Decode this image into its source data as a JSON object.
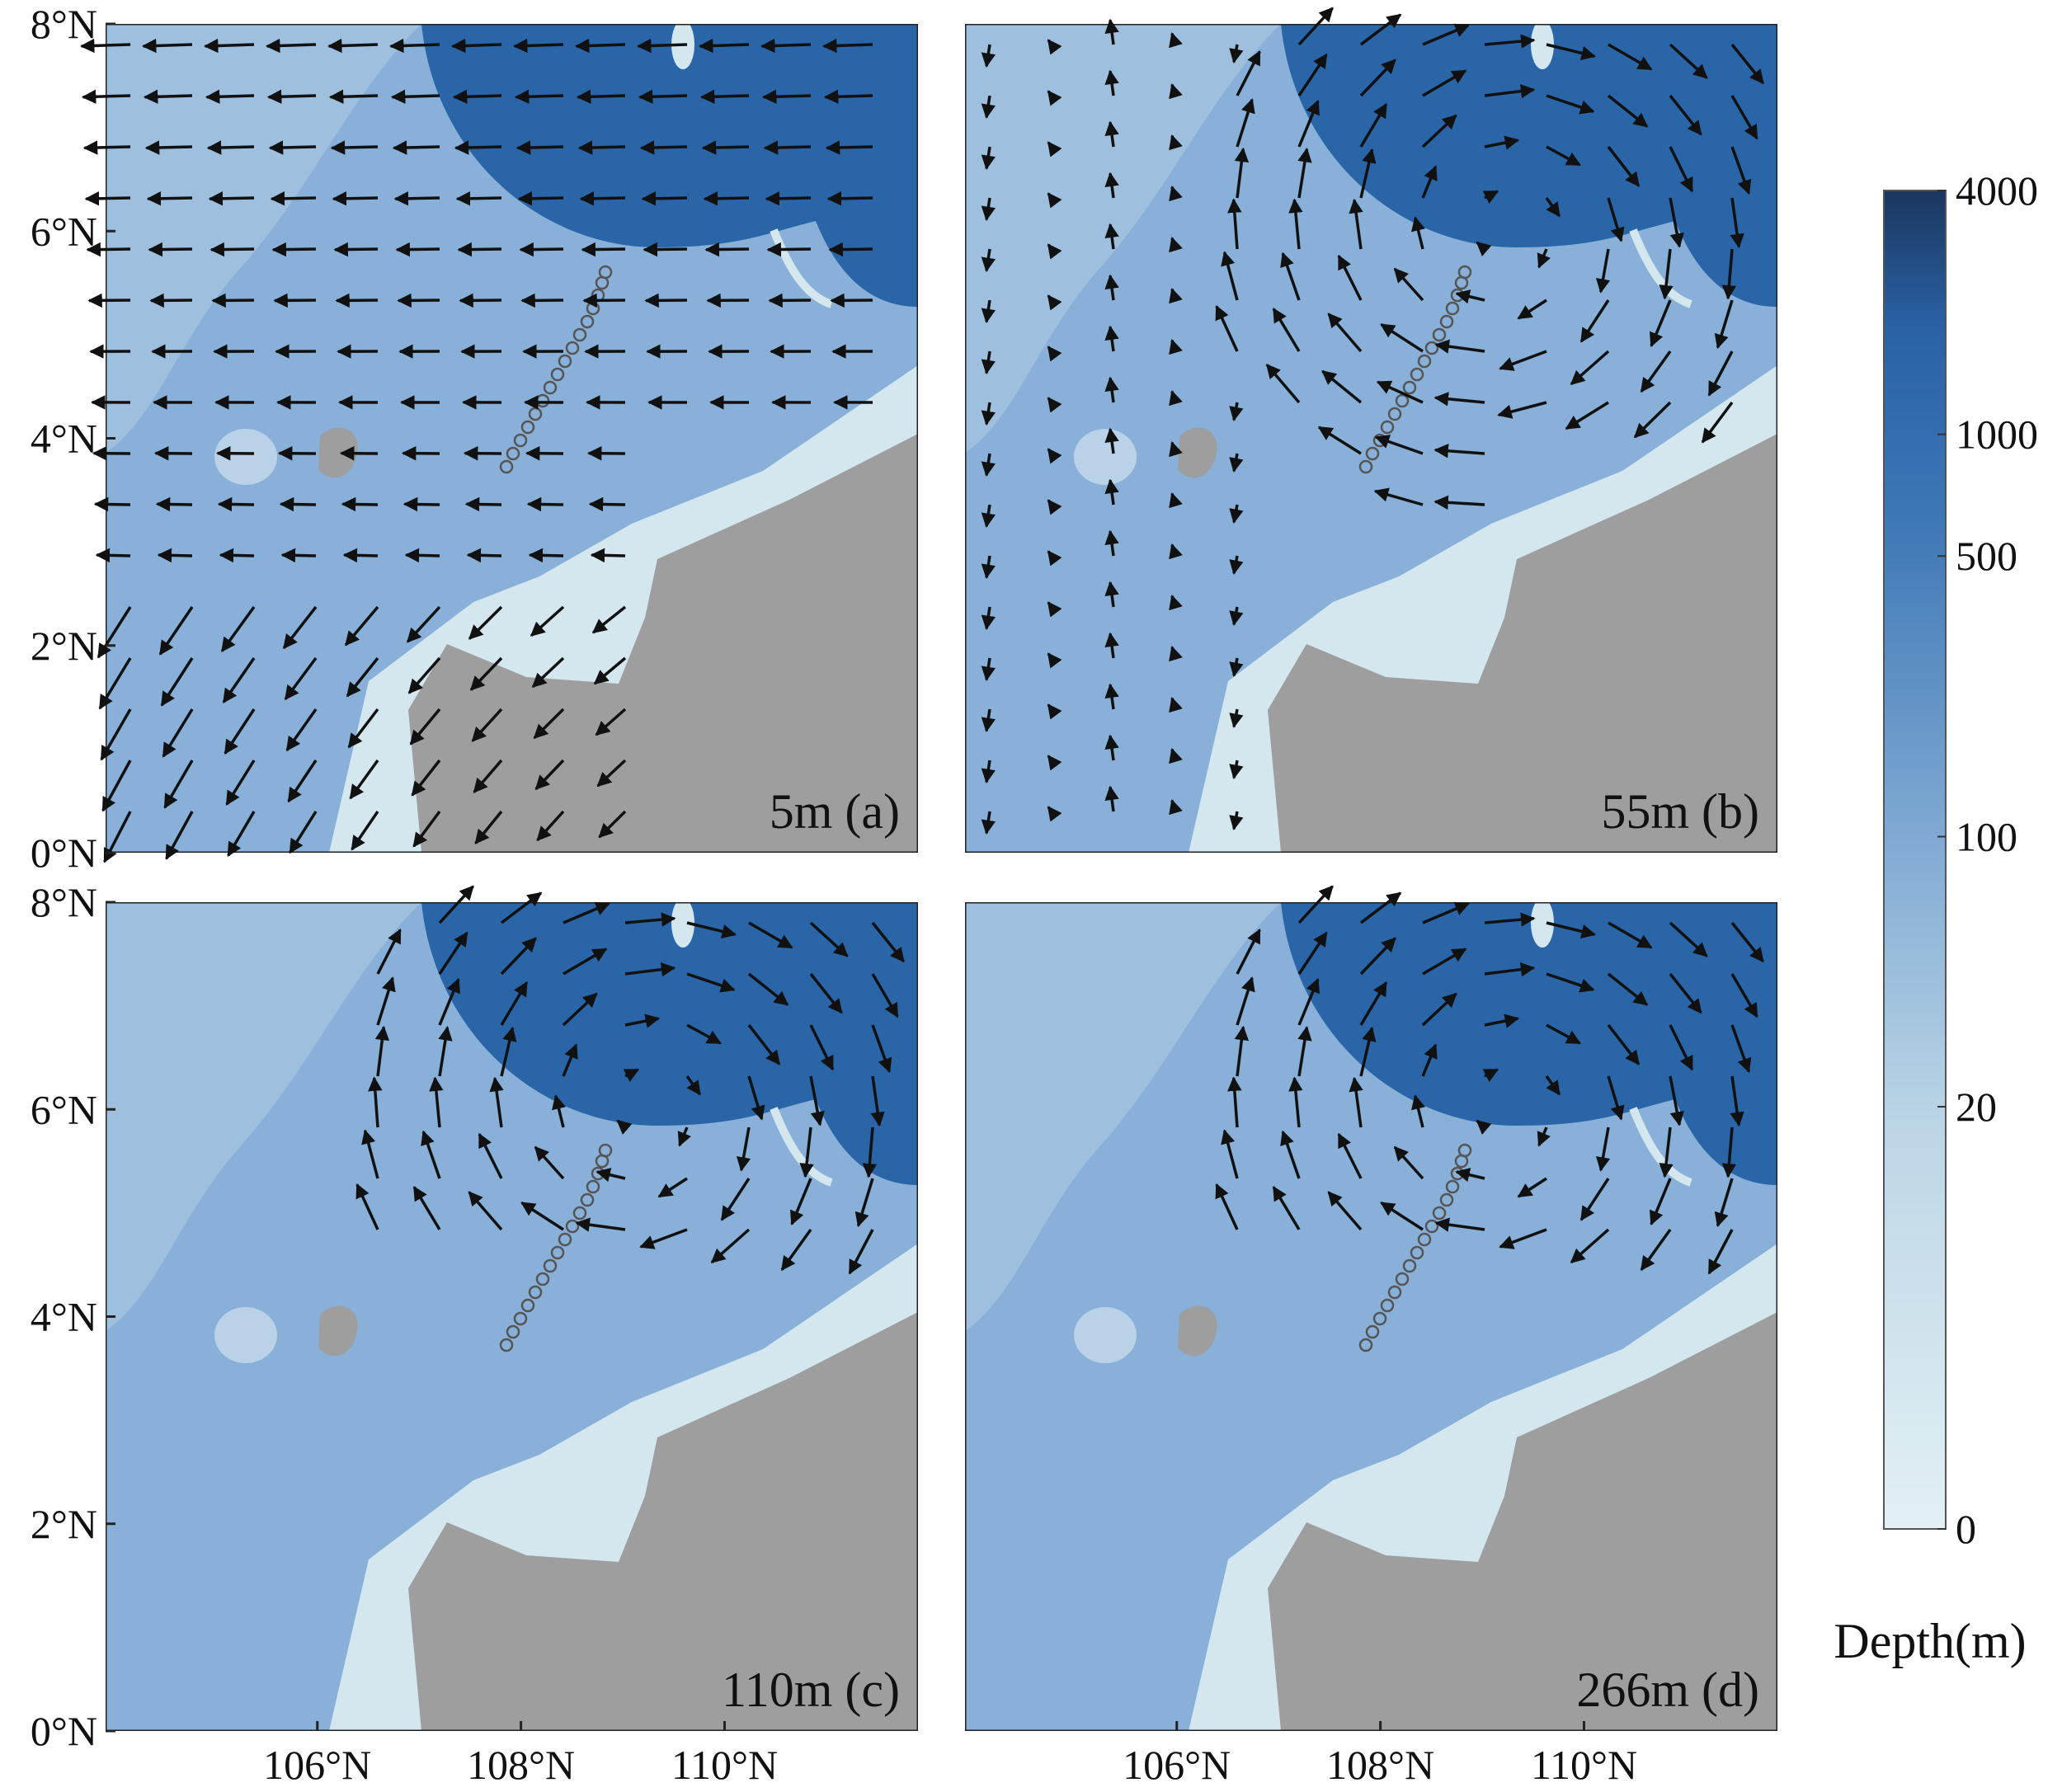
{
  "panels": [
    {
      "label": "5m (a)"
    },
    {
      "label": "55m (b)"
    },
    {
      "label": "110m (c)"
    },
    {
      "label": "266m (d)"
    }
  ],
  "latitude_range": [
    0,
    8
  ],
  "longitude_range": [
    103.92,
    111.9
  ],
  "latitude_ticks": [
    {
      "value": 8,
      "label": "8°N"
    },
    {
      "value": 6,
      "label": "6°N"
    },
    {
      "value": 4,
      "label": "4°N"
    },
    {
      "value": 2,
      "label": "2°N"
    },
    {
      "value": 0,
      "label": "0°N"
    }
  ],
  "longitude_ticks": [
    {
      "value": 106,
      "label": "106°N"
    },
    {
      "value": 108,
      "label": "108°N"
    },
    {
      "value": 110,
      "label": "110°N"
    }
  ],
  "colorbar": {
    "title": "Depth(m)",
    "ticks": [
      0,
      20,
      100,
      500,
      1000,
      4000
    ]
  }
}
